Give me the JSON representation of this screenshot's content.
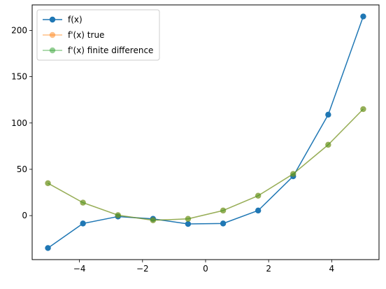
{
  "chart_data": {
    "type": "line",
    "x": [
      -5.0,
      -3.889,
      -2.778,
      -1.667,
      -0.556,
      0.556,
      1.667,
      2.778,
      3.889,
      5.0
    ],
    "series": [
      {
        "name": "f(x)",
        "color": "#1f77b4",
        "alpha": 1.0,
        "values": [
          -35,
          -8.5,
          -1,
          -3.5,
          -9,
          -8.5,
          5.5,
          42.5,
          109,
          215
        ]
      },
      {
        "name": "f'(x) true",
        "color": "#ff7f0e",
        "alpha": 0.5,
        "values": [
          35,
          14,
          0.5,
          -5,
          -3.5,
          5.5,
          21.5,
          45,
          76.5,
          115
        ]
      },
      {
        "name": "f'(x) finite difference",
        "color": "#2ca02c",
        "alpha": 0.5,
        "values": [
          35,
          14,
          0.5,
          -5,
          -3.5,
          5.5,
          21.5,
          45,
          76.5,
          115
        ]
      }
    ],
    "xlim": [
      -5.5,
      5.5
    ],
    "ylim": [
      -47.5,
      227.5
    ],
    "xticks": [
      -4,
      -2,
      0,
      2,
      4
    ],
    "xtick_labels": [
      "−4",
      "−2",
      "0",
      "2",
      "4"
    ],
    "yticks": [
      0,
      50,
      100,
      150,
      200
    ],
    "ytick_labels": [
      "0",
      "50",
      "100",
      "150",
      "200"
    ],
    "grid": false,
    "legend_position": "upper-left",
    "title": "",
    "xlabel": "",
    "ylabel": ""
  }
}
